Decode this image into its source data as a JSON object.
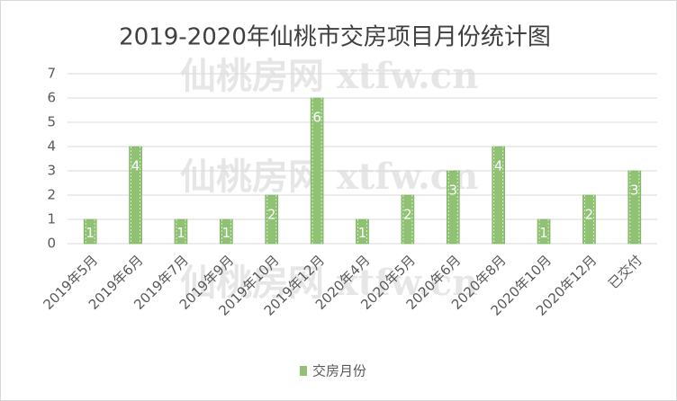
{
  "watermark": "仙桃房网 xtfw.cn",
  "chart_data": {
    "type": "bar",
    "title": "2019-2020年仙桃市交房项目月份统计图",
    "categories": [
      "2019年5月",
      "2019年6月",
      "2019年7月",
      "2019年9月",
      "2019年10月",
      "2019年12月",
      "2020年4月",
      "2020年5月",
      "2020年6月",
      "2020年8月",
      "2020年10月",
      "2020年12月",
      "已交付"
    ],
    "series": [
      {
        "name": "交房月份",
        "color": "#8fc273",
        "values": [
          1,
          4,
          1,
          1,
          2,
          6,
          1,
          2,
          3,
          4,
          1,
          2,
          3
        ]
      }
    ],
    "ylim": [
      0,
      7
    ],
    "yticks": [
      0,
      1,
      2,
      3,
      4,
      5,
      6,
      7
    ],
    "grid": true,
    "legend": "bottom",
    "data_labels": true
  }
}
